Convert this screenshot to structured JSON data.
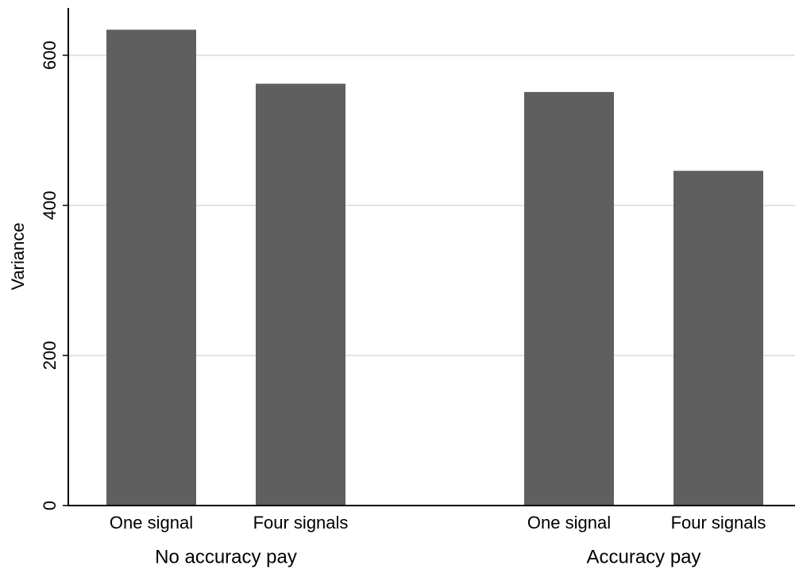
{
  "chart_data": {
    "type": "bar",
    "y_label": "Variance",
    "groups": [
      "No accuracy pay",
      "Accuracy pay"
    ],
    "categories": [
      "One signal",
      "Four signals",
      "One signal",
      "Four signals"
    ],
    "values": [
      634,
      562,
      551,
      446
    ],
    "color": "#5f5f5f",
    "ylim": [
      0,
      663
    ],
    "yticks": [
      0,
      200,
      400,
      600
    ],
    "grid": true
  }
}
